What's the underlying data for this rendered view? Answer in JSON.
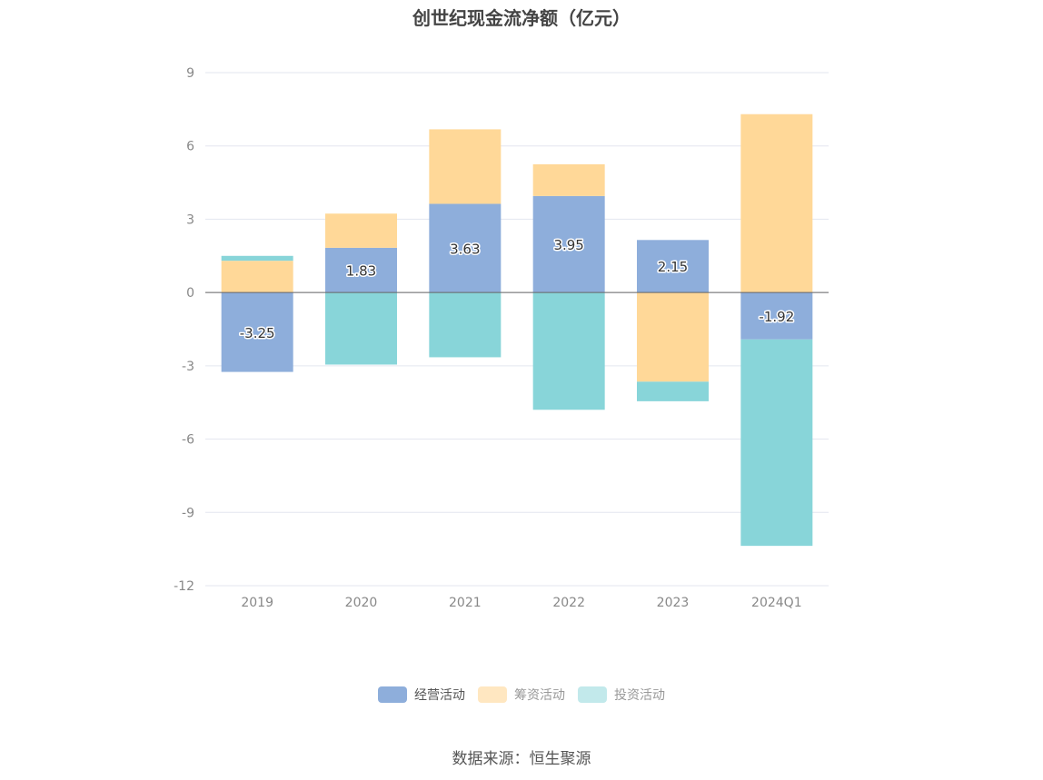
{
  "chart_data": {
    "type": "bar",
    "stacked": true,
    "title": "创世纪现金流净额（亿元）",
    "categories": [
      "2019",
      "2020",
      "2021",
      "2022",
      "2023",
      "2024Q1"
    ],
    "ylim": [
      -12,
      9
    ],
    "yticks": [
      9,
      6,
      3,
      0,
      -3,
      -6,
      -9,
      -12
    ],
    "grid": true,
    "legend_position": "bottom",
    "series": [
      {
        "name": "经营活动",
        "color": "#8eaedb",
        "values": [
          -3.25,
          1.83,
          3.63,
          3.95,
          2.15,
          -1.92
        ],
        "labels": [
          "-3.25",
          "1.83",
          "3.63",
          "3.95",
          "2.15",
          "-1.92"
        ]
      },
      {
        "name": "筹资活动",
        "color": "#ffd898",
        "values": [
          1.3,
          1.4,
          3.05,
          1.3,
          -3.65,
          7.3
        ]
      },
      {
        "name": "投资活动",
        "color": "#88d5d9",
        "values": [
          0.2,
          -2.95,
          -2.65,
          -4.8,
          -0.8,
          -8.45
        ]
      }
    ]
  },
  "source": "数据来源：恒生聚源"
}
